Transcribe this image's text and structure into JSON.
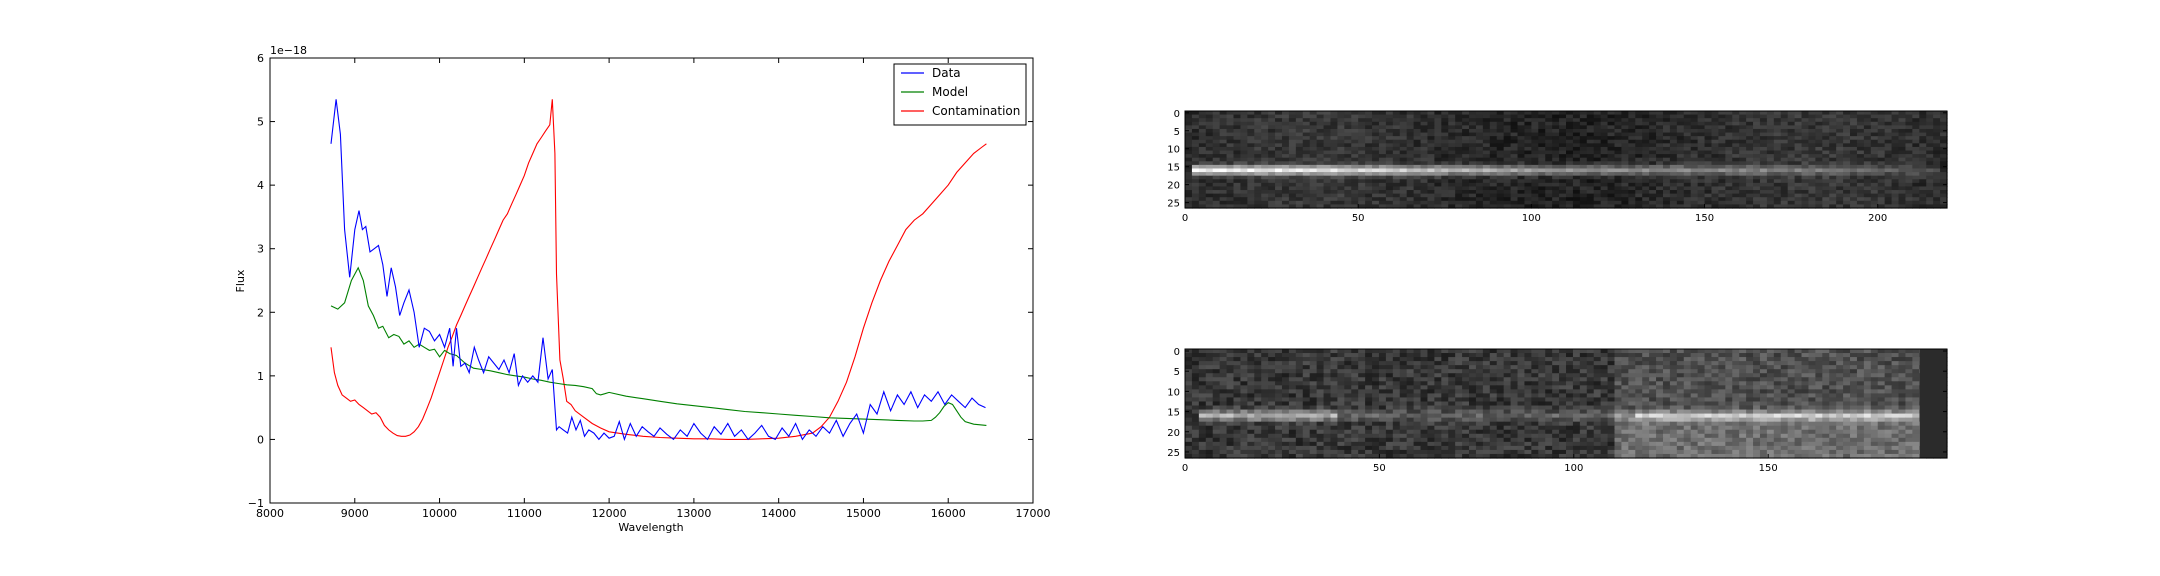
{
  "chart_data": [
    {
      "type": "line",
      "xlabel": "Wavelength",
      "ylabel": "Flux",
      "offset_text": "1e−18",
      "xlim": [
        8000,
        17000
      ],
      "ylim": [
        -1,
        6
      ],
      "xticks": [
        8000,
        9000,
        10000,
        11000,
        12000,
        13000,
        14000,
        15000,
        16000,
        17000
      ],
      "yticks": [
        -1,
        0,
        1,
        2,
        3,
        4,
        5,
        6
      ],
      "legend_position": "top-right",
      "series": [
        {
          "name": "Data",
          "color": "#0000ff",
          "x": [
            8720,
            8780,
            8830,
            8880,
            8940,
            9000,
            9050,
            9090,
            9130,
            9180,
            9230,
            9280,
            9330,
            9380,
            9430,
            9480,
            9530,
            9580,
            9640,
            9700,
            9760,
            9820,
            9880,
            9940,
            10000,
            10060,
            10120,
            10160,
            10200,
            10250,
            10300,
            10350,
            10410,
            10460,
            10520,
            10580,
            10640,
            10700,
            10760,
            10820,
            10880,
            10930,
            10980,
            11040,
            11100,
            11160,
            11220,
            11280,
            11330,
            11380,
            11410,
            11460,
            11510,
            11560,
            11610,
            11660,
            11710,
            11760,
            11820,
            11880,
            11940,
            12000,
            12060,
            12120,
            12180,
            12250,
            12320,
            12390,
            12460,
            12530,
            12600,
            12680,
            12760,
            12840,
            12920,
            13000,
            13080,
            13160,
            13240,
            13320,
            13400,
            13480,
            13560,
            13640,
            13720,
            13800,
            13880,
            13960,
            14040,
            14120,
            14200,
            14280,
            14360,
            14440,
            14520,
            14600,
            14680,
            14760,
            14840,
            14920,
            15000,
            15080,
            15160,
            15240,
            15320,
            15400,
            15480,
            15560,
            15640,
            15720,
            15800,
            15880,
            15960,
            16040,
            16120,
            16200,
            16280,
            16360,
            16440
          ],
          "y": [
            4.65,
            5.35,
            4.8,
            3.3,
            2.55,
            3.3,
            3.6,
            3.3,
            3.35,
            2.95,
            3.0,
            3.05,
            2.75,
            2.25,
            2.7,
            2.4,
            1.95,
            2.15,
            2.35,
            2.0,
            1.45,
            1.75,
            1.7,
            1.55,
            1.65,
            1.45,
            1.75,
            1.15,
            1.75,
            1.15,
            1.2,
            1.05,
            1.45,
            1.25,
            1.05,
            1.3,
            1.2,
            1.1,
            1.25,
            1.05,
            1.35,
            0.85,
            1.0,
            0.9,
            1.0,
            0.9,
            1.6,
            0.95,
            1.1,
            0.15,
            0.2,
            0.15,
            0.1,
            0.35,
            0.15,
            0.3,
            0.05,
            0.15,
            0.1,
            0.0,
            0.1,
            0.02,
            0.05,
            0.28,
            0.0,
            0.25,
            0.05,
            0.2,
            0.12,
            0.05,
            0.18,
            0.08,
            0.0,
            0.15,
            0.05,
            0.25,
            0.1,
            0.0,
            0.2,
            0.08,
            0.25,
            0.05,
            0.15,
            0.0,
            0.1,
            0.22,
            0.05,
            0.0,
            0.18,
            0.05,
            0.25,
            0.0,
            0.15,
            0.05,
            0.2,
            0.1,
            0.3,
            0.05,
            0.25,
            0.4,
            0.1,
            0.55,
            0.4,
            0.75,
            0.45,
            0.7,
            0.55,
            0.75,
            0.5,
            0.7,
            0.6,
            0.75,
            0.55,
            0.7,
            0.6,
            0.5,
            0.65,
            0.55,
            0.5
          ]
        },
        {
          "name": "Model",
          "color": "#008000",
          "x": [
            8720,
            8800,
            8880,
            8960,
            9040,
            9100,
            9160,
            9220,
            9280,
            9330,
            9400,
            9460,
            9520,
            9580,
            9640,
            9700,
            9760,
            9820,
            9880,
            9940,
            10000,
            10060,
            10120,
            10200,
            10300,
            10400,
            10500,
            10600,
            10700,
            10800,
            10900,
            11000,
            11100,
            11200,
            11300,
            11400,
            11500,
            11600,
            11700,
            11800,
            11850,
            11900,
            11950,
            12000,
            12200,
            12400,
            12600,
            12800,
            13000,
            13200,
            13400,
            13600,
            13800,
            14000,
            14200,
            14400,
            14600,
            14800,
            15000,
            15200,
            15400,
            15600,
            15700,
            15800,
            15850,
            15900,
            15950,
            16000,
            16050,
            16100,
            16150,
            16200,
            16300,
            16450
          ],
          "y": [
            2.1,
            2.05,
            2.15,
            2.5,
            2.7,
            2.5,
            2.1,
            1.95,
            1.75,
            1.78,
            1.6,
            1.65,
            1.62,
            1.5,
            1.55,
            1.45,
            1.5,
            1.45,
            1.4,
            1.42,
            1.3,
            1.4,
            1.35,
            1.32,
            1.2,
            1.12,
            1.1,
            1.08,
            1.05,
            1.02,
            1.0,
            0.98,
            0.95,
            0.93,
            0.9,
            0.88,
            0.86,
            0.85,
            0.83,
            0.8,
            0.72,
            0.7,
            0.72,
            0.74,
            0.68,
            0.64,
            0.6,
            0.56,
            0.53,
            0.5,
            0.47,
            0.44,
            0.42,
            0.4,
            0.38,
            0.36,
            0.34,
            0.33,
            0.32,
            0.31,
            0.3,
            0.29,
            0.29,
            0.3,
            0.35,
            0.42,
            0.52,
            0.58,
            0.55,
            0.45,
            0.35,
            0.28,
            0.24,
            0.22
          ]
        },
        {
          "name": "Contamination",
          "color": "#ff0000",
          "x": [
            8720,
            8760,
            8800,
            8850,
            8900,
            8950,
            9000,
            9050,
            9100,
            9150,
            9200,
            9250,
            9300,
            9350,
            9400,
            9450,
            9500,
            9550,
            9600,
            9650,
            9700,
            9750,
            9800,
            9850,
            9900,
            9950,
            10000,
            10050,
            10100,
            10150,
            10200,
            10250,
            10300,
            10350,
            10400,
            10450,
            10500,
            10550,
            10600,
            10650,
            10700,
            10750,
            10800,
            10850,
            10900,
            10950,
            11000,
            11050,
            11100,
            11150,
            11200,
            11250,
            11300,
            11330,
            11360,
            11380,
            11420,
            11460,
            11500,
            11550,
            11600,
            11700,
            11800,
            11900,
            12000,
            12200,
            12400,
            12600,
            12800,
            13000,
            13200,
            13400,
            13600,
            13800,
            14000,
            14200,
            14400,
            14500,
            14600,
            14700,
            14800,
            14900,
            15000,
            15100,
            15200,
            15300,
            15400,
            15500,
            15600,
            15700,
            15800,
            15900,
            16000,
            16100,
            16200,
            16300,
            16400,
            16450
          ],
          "y": [
            1.45,
            1.05,
            0.85,
            0.7,
            0.65,
            0.6,
            0.62,
            0.55,
            0.5,
            0.45,
            0.4,
            0.42,
            0.35,
            0.22,
            0.15,
            0.1,
            0.06,
            0.05,
            0.05,
            0.07,
            0.12,
            0.2,
            0.32,
            0.48,
            0.65,
            0.85,
            1.05,
            1.25,
            1.45,
            1.62,
            1.8,
            1.95,
            2.1,
            2.25,
            2.4,
            2.55,
            2.7,
            2.85,
            3.0,
            3.15,
            3.3,
            3.45,
            3.55,
            3.7,
            3.85,
            4.0,
            4.15,
            4.35,
            4.5,
            4.65,
            4.75,
            4.85,
            4.95,
            5.35,
            4.5,
            2.6,
            1.25,
            0.95,
            0.6,
            0.55,
            0.45,
            0.35,
            0.25,
            0.18,
            0.12,
            0.08,
            0.05,
            0.03,
            0.02,
            0.01,
            0.01,
            0.0,
            0.0,
            0.01,
            0.02,
            0.05,
            0.1,
            0.2,
            0.35,
            0.6,
            0.9,
            1.3,
            1.75,
            2.15,
            2.5,
            2.8,
            3.05,
            3.3,
            3.45,
            3.55,
            3.7,
            3.85,
            4.0,
            4.2,
            4.35,
            4.5,
            4.6,
            4.65
          ]
        }
      ]
    },
    {
      "type": "heatmap",
      "colormap": "gray",
      "xlim": [
        0,
        220
      ],
      "ylim": [
        27,
        0
      ],
      "xticks": [
        0,
        50,
        100,
        150,
        200
      ],
      "yticks": [
        0,
        5,
        10,
        15,
        20,
        25
      ],
      "trace_row": 16,
      "trace_start": 3,
      "trace_end": 218
    },
    {
      "type": "heatmap",
      "colormap": "gray",
      "xlim": [
        0,
        196
      ],
      "ylim": [
        27,
        0
      ],
      "xticks": [
        0,
        50,
        100,
        150
      ],
      "yticks": [
        0,
        5,
        10,
        15,
        20,
        25
      ],
      "trace_row": 16,
      "trace_start": 3,
      "trace_end": 189
    }
  ]
}
